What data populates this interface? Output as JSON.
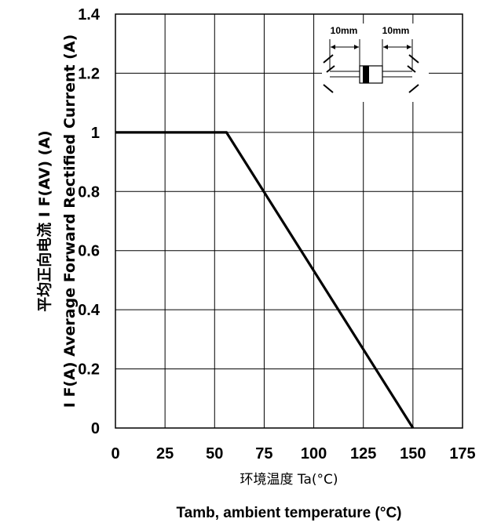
{
  "chart_data": {
    "type": "line",
    "title": "",
    "xlabel_cn": "环境温度 Ta(°C)",
    "xlabel": "Tamb, ambient temperature (°C)",
    "ylabel_cn": "平均正向电流  I F(AV)  (A)",
    "ylabel": "I F(A)  Average Forward Rectified Current (A)",
    "xlim": [
      0,
      175
    ],
    "ylim": [
      0,
      1.4
    ],
    "x_ticks": [
      "0",
      "25",
      "50",
      "75",
      "100",
      "125",
      "150",
      "175"
    ],
    "y_ticks": [
      "0",
      "0.2",
      "0.4",
      "0.6",
      "0.8",
      "1",
      "1.2",
      "1.4"
    ],
    "grid": true,
    "series": [
      {
        "x": [
          0,
          56,
          150
        ],
        "y": [
          1.0,
          1.0,
          0.0
        ]
      }
    ],
    "inset": {
      "lead_label_left": "10mm",
      "lead_label_right": "10mm"
    }
  }
}
